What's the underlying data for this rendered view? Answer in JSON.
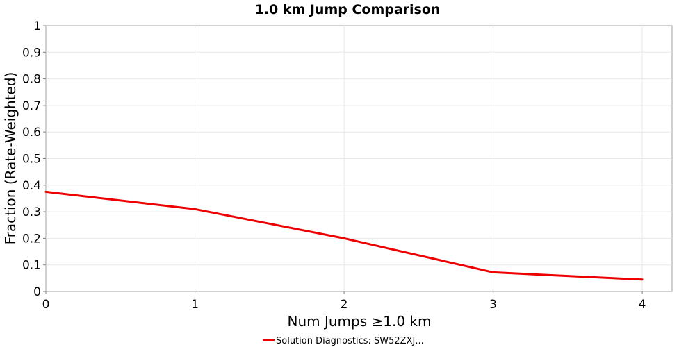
{
  "chart_data": {
    "type": "line",
    "title": "1.0 km Jump Comparison",
    "xlabel": "Num Jumps ≥1.0 km",
    "ylabel": "Fraction (Rate-Weighted)",
    "xlim": [
      0,
      4.2
    ],
    "ylim": [
      0,
      1
    ],
    "xticks": [
      "0",
      "1",
      "2",
      "3",
      "4"
    ],
    "yticks": [
      "0",
      "0.1",
      "0.2",
      "0.3",
      "0.4",
      "0.5",
      "0.6",
      "0.7",
      "0.8",
      "0.9",
      "1"
    ],
    "grid": true,
    "legend_position": "bottom-center",
    "series": [
      {
        "name": "Solution Diagnostics: SW52ZXJ...",
        "color": "#ee0000",
        "x": [
          0,
          1,
          2,
          3,
          4
        ],
        "y": [
          0.375,
          0.31,
          0.2,
          0.072,
          0.045
        ]
      }
    ]
  }
}
